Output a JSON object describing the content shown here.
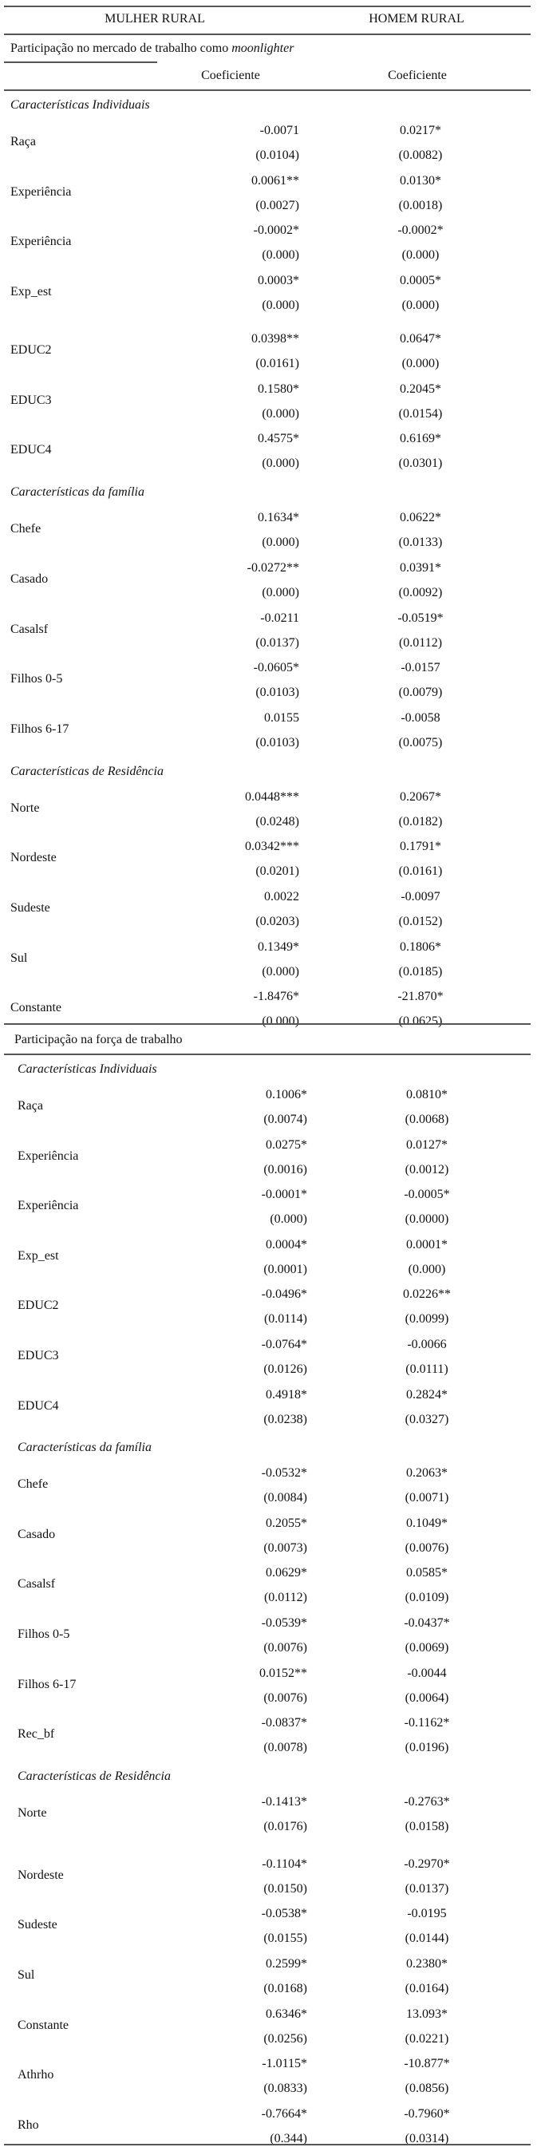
{
  "header": {
    "col1": "MULHER RURAL",
    "col2": "HOMEM RURAL"
  },
  "panels": [
    {
      "title": "Participação no mercado de trabalho como ",
      "title_italic": "moonlighter",
      "col_headers": [
        "Coeficiente",
        "Coeficiente"
      ],
      "groups": [
        {
          "name": "Características Individuais",
          "rows": [
            {
              "label": "Raça",
              "mulher": {
                "coef": "-0.0071",
                "se": "(0.0104)"
              },
              "homem": {
                "coef": "0.0217*",
                "se": "(0.0082)"
              }
            },
            {
              "label": "Experiência",
              "mulher": {
                "coef": "0.0061**",
                "se": "(0.0027)"
              },
              "homem": {
                "coef": "0.0130*",
                "se": "(0.0018)"
              }
            },
            {
              "label": "Experiência",
              "mulher": {
                "coef": "-0.0002*",
                "se": "(0.000)"
              },
              "homem": {
                "coef": "-0.0002*",
                "se": "(0.000)"
              }
            },
            {
              "label": "Exp_est",
              "mulher": {
                "coef": "0.0003*",
                "se": "(0.000)"
              },
              "homem": {
                "coef": "0.0005*",
                "se": "(0.000)"
              }
            },
            {
              "label": "EDUC2",
              "mulher": {
                "coef": "0.0398**",
                "se": "(0.0161)"
              },
              "homem": {
                "coef": "0.0647*",
                "se": "(0.000)"
              }
            },
            {
              "label": "EDUC3",
              "mulher": {
                "coef": "0.1580*",
                "se": "(0.000)"
              },
              "homem": {
                "coef": "0.2045*",
                "se": "(0.0154)"
              }
            },
            {
              "label": "EDUC4",
              "mulher": {
                "coef": "0.4575*",
                "se": "(0.000)"
              },
              "homem": {
                "coef": "0.6169*",
                "se": "(0.0301)"
              }
            }
          ]
        },
        {
          "name": "Características da família",
          "rows": [
            {
              "label": "Chefe",
              "mulher": {
                "coef": "0.1634*",
                "se": "(0.000)"
              },
              "homem": {
                "coef": "0.0622*",
                "se": "(0.0133)"
              }
            },
            {
              "label": "Casado",
              "mulher": {
                "coef": "-0.0272**",
                "se": "(0.000)"
              },
              "homem": {
                "coef": "0.0391*",
                "se": "(0.0092)"
              }
            },
            {
              "label": "Casalsf",
              "mulher": {
                "coef": "-0.0211",
                "se": "(0.0137)"
              },
              "homem": {
                "coef": "-0.0519*",
                "se": "(0.0112)"
              }
            },
            {
              "label": "Filhos 0-5",
              "mulher": {
                "coef": "-0.0605*",
                "se": "(0.0103)"
              },
              "homem": {
                "coef": "-0.0157",
                "se": "(0.0079)"
              }
            },
            {
              "label": "Filhos 6-17",
              "mulher": {
                "coef": "0.0155",
                "se": "(0.0103)"
              },
              "homem": {
                "coef": "-0.0058",
                "se": "(0.0075)"
              }
            }
          ]
        },
        {
          "name": "Características de Residência",
          "rows": [
            {
              "label": "Norte",
              "mulher": {
                "coef": "0.0448***",
                "se": "(0.0248)"
              },
              "homem": {
                "coef": "0.2067*",
                "se": "(0.0182)"
              }
            },
            {
              "label": "Nordeste",
              "mulher": {
                "coef": "0.0342***",
                "se": "(0.0201)"
              },
              "homem": {
                "coef": "0.1791*",
                "se": "(0.0161)"
              }
            },
            {
              "label": "Sudeste",
              "mulher": {
                "coef": "0.0022",
                "se": "(0.0203)"
              },
              "homem": {
                "coef": "-0.0097",
                "se": "(0.0152)"
              }
            },
            {
              "label": "Sul",
              "mulher": {
                "coef": "0.1349*",
                "se": "(0.000)"
              },
              "homem": {
                "coef": "0.1806*",
                "se": "(0.0185)"
              }
            },
            {
              "label": "Constante",
              "mulher": {
                "coef": "-1.8476*",
                "se": "(0.000)"
              },
              "homem": {
                "coef": "-21.870*",
                "se": "(0.0625)"
              }
            }
          ]
        }
      ]
    },
    {
      "title": "Participação na força de trabalho",
      "title_italic": "",
      "groups": [
        {
          "name": "Características Individuais",
          "rows": [
            {
              "label": "Raça",
              "mulher": {
                "coef": "0.1006*",
                "se": "(0.0074)"
              },
              "homem": {
                "coef": "0.0810*",
                "se": "(0.0068)"
              }
            },
            {
              "label": "Experiência",
              "mulher": {
                "coef": "0.0275*",
                "se": "(0.0016)"
              },
              "homem": {
                "coef": "0.0127*",
                "se": "(0.0012)"
              }
            },
            {
              "label": "Experiência",
              "mulher": {
                "coef": "-0.0001*",
                "se": "(0.000)"
              },
              "homem": {
                "coef": "-0.0005*",
                "se": "(0.0000)"
              }
            },
            {
              "label": "Exp_est",
              "mulher": {
                "coef": "0.0004*",
                "se": "(0.0001)"
              },
              "homem": {
                "coef": "0.0001*",
                "se": "(0.000)"
              }
            },
            {
              "label": "EDUC2",
              "mulher": {
                "coef": "-0.0496*",
                "se": "(0.0114)"
              },
              "homem": {
                "coef": "0.0226**",
                "se": "(0.0099)"
              }
            },
            {
              "label": "EDUC3",
              "mulher": {
                "coef": "-0.0764*",
                "se": "(0.0126)"
              },
              "homem": {
                "coef": "-0.0066",
                "se": "(0.0111)"
              }
            },
            {
              "label": "EDUC4",
              "mulher": {
                "coef": "0.4918*",
                "se": "(0.0238)"
              },
              "homem": {
                "coef": "0.2824*",
                "se": "(0.0327)"
              }
            }
          ]
        },
        {
          "name": "Características da família",
          "rows": [
            {
              "label": "Chefe",
              "mulher": {
                "coef": "-0.0532*",
                "se": "(0.0084)"
              },
              "homem": {
                "coef": "0.2063*",
                "se": "(0.0071)"
              }
            },
            {
              "label": "Casado",
              "mulher": {
                "coef": "0.2055*",
                "se": "(0.0073)"
              },
              "homem": {
                "coef": "0.1049*",
                "se": "(0.0076)"
              }
            },
            {
              "label": "Casalsf",
              "mulher": {
                "coef": "0.0629*",
                "se": "(0.0112)"
              },
              "homem": {
                "coef": "0.0585*",
                "se": "(0.0109)"
              }
            },
            {
              "label": "Filhos 0-5",
              "mulher": {
                "coef": "-0.0539*",
                "se": "(0.0076)"
              },
              "homem": {
                "coef": "-0.0437*",
                "se": "(0.0069)"
              }
            },
            {
              "label": "Filhos 6-17",
              "mulher": {
                "coef": "0.0152**",
                "se": "(0.0076)"
              },
              "homem": {
                "coef": "-0.0044",
                "se": "(0.0064)"
              }
            },
            {
              "label": "Rec_bf",
              "mulher": {
                "coef": "-0.0837*",
                "se": "(0.0078)"
              },
              "homem": {
                "coef": "-0.1162*",
                "se": "(0.0196)"
              }
            }
          ]
        },
        {
          "name": "Características de Residência",
          "rows": [
            {
              "label": "Norte",
              "mulher": {
                "coef": "-0.1413*",
                "se": "(0.0176)"
              },
              "homem": {
                "coef": "-0.2763*",
                "se": "(0.0158)"
              }
            },
            {
              "label": "Nordeste",
              "mulher": {
                "coef": "-0.1104*",
                "se": "(0.0150)"
              },
              "homem": {
                "coef": "-0.2970*",
                "se": "(0.0137)"
              }
            },
            {
              "label": "Sudeste",
              "mulher": {
                "coef": "-0.0538*",
                "se": "(0.0155)"
              },
              "homem": {
                "coef": "-0.0195",
                "se": "(0.0144)"
              }
            },
            {
              "label": "Sul",
              "mulher": {
                "coef": "0.2599*",
                "se": "(0.0168)"
              },
              "homem": {
                "coef": "0.2380*",
                "se": "(0.0164)"
              }
            },
            {
              "label": "Constante",
              "mulher": {
                "coef": "0.6346*",
                "se": "(0.0256)"
              },
              "homem": {
                "coef": "13.093*",
                "se": "(0.0221)"
              }
            },
            {
              "label": "Athrho",
              "mulher": {
                "coef": "-1.0115*",
                "se": "(0.0833)"
              },
              "homem": {
                "coef": "-10.877*",
                "se": "(0.0856)"
              }
            },
            {
              "label": "Rho",
              "mulher": {
                "coef": "-0.7664*",
                "se": "(0.344)"
              },
              "homem": {
                "coef": "-0.7960*",
                "se": "(0.0314)"
              }
            }
          ]
        }
      ]
    }
  ]
}
